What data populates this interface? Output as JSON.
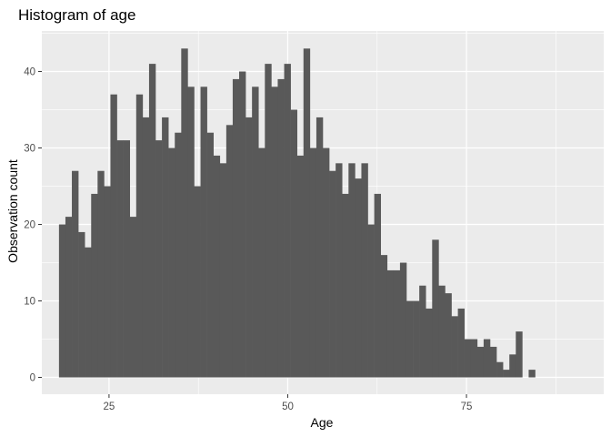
{
  "chart_data": {
    "type": "bar",
    "title": "Histogram of age",
    "xlabel": "Age",
    "ylabel": "Observation count",
    "xlim": [
      15.6,
      94.2
    ],
    "ylim": [
      -2.2,
      45.3
    ],
    "x_ticks": [
      25,
      50,
      75
    ],
    "y_ticks": [
      0,
      10,
      20,
      30,
      40
    ],
    "grid": true,
    "bin_width": 0.9,
    "bin_start": 18.0,
    "values": [
      20,
      21,
      27,
      19,
      17,
      24,
      27,
      25,
      37,
      31,
      31,
      21,
      37,
      34,
      41,
      31,
      34,
      30,
      32,
      43,
      38,
      25,
      38,
      32,
      29,
      28,
      33,
      39,
      40,
      34,
      38,
      30,
      41,
      38,
      39,
      41,
      35,
      29,
      43,
      30,
      34,
      30,
      27,
      28,
      24,
      28,
      26,
      28,
      20,
      24,
      16,
      14,
      14,
      15,
      10,
      10,
      12,
      9,
      18,
      12,
      11,
      8,
      9,
      5,
      5,
      4,
      5,
      4,
      2,
      1,
      3,
      6,
      0,
      1
    ],
    "colors": {
      "bar": "#595959",
      "panel": "#ebebeb",
      "grid": "#ffffff"
    }
  }
}
